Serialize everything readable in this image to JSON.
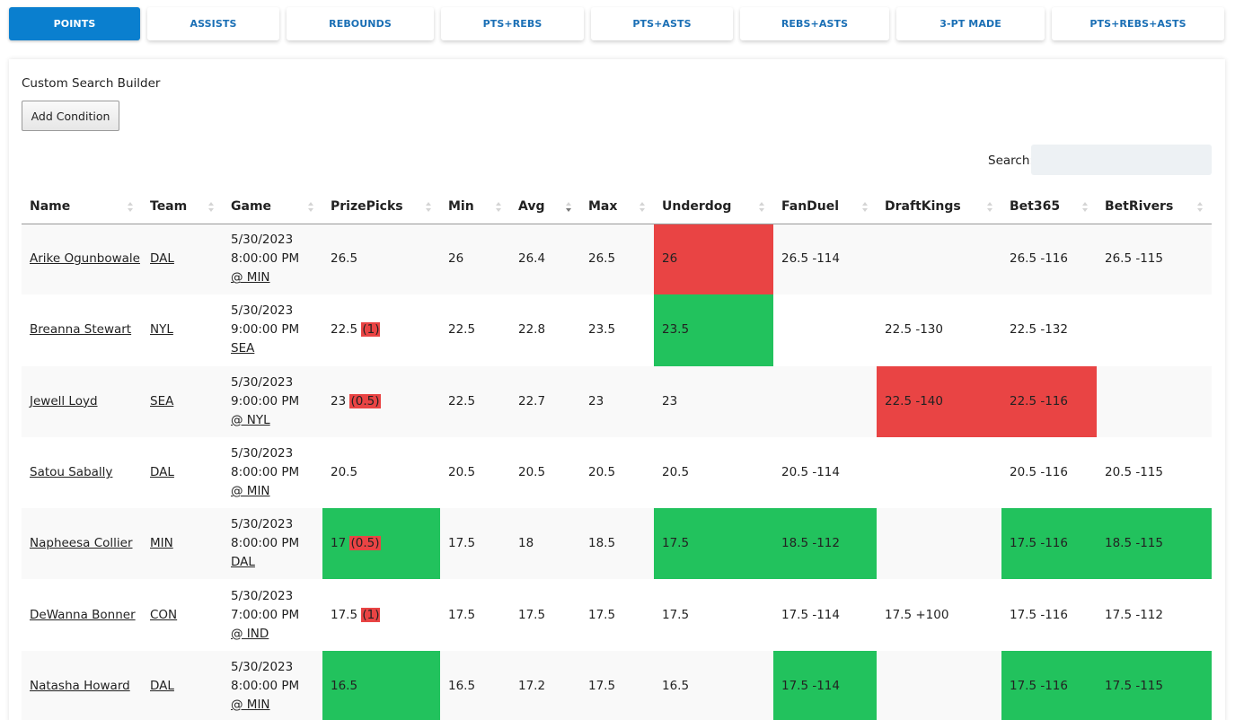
{
  "tabs": [
    "POINTS",
    "ASSISTS",
    "REBOUNDS",
    "PTS+REBS",
    "PTS+ASTS",
    "REBS+ASTS",
    "3-PT MADE",
    "PTS+REBS+ASTS"
  ],
  "builder": {
    "title": "Custom Search Builder",
    "add_button": "Add Condition"
  },
  "search": {
    "label": "Search:",
    "value": ""
  },
  "colors": {
    "accent": "#0a7fcf",
    "red": "#e94444",
    "green": "#22c25d"
  },
  "columns": [
    "Name",
    "Team",
    "Game",
    "PrizePicks",
    "Min",
    "Avg",
    "Max",
    "Underdog",
    "FanDuel",
    "DraftKings",
    "Bet365",
    "BetRivers"
  ],
  "sort": {
    "column": "Avg",
    "direction": "descending"
  },
  "rows": [
    {
      "name": "Arike Ogunbowale",
      "team": "DAL",
      "game": {
        "date": "5/30/2023",
        "time": "8:00:00 PM",
        "opponent": "@ MIN"
      },
      "prizepicks": "26.5",
      "prizepicks_diff": "",
      "min": "26",
      "avg": "26.4",
      "max": "26.5",
      "underdog": "26",
      "fanduel": "26.5 -114",
      "draftkings": "",
      "bet365": "26.5 -116",
      "betrivers": "26.5 -115",
      "highlight": {
        "prizepicks": "",
        "underdog": "red",
        "fanduel": "",
        "draftkings": "",
        "bet365": "",
        "betrivers": ""
      }
    },
    {
      "name": "Breanna Stewart",
      "team": "NYL",
      "game": {
        "date": "5/30/2023",
        "time": "9:00:00 PM",
        "opponent": "SEA"
      },
      "prizepicks": "22.5",
      "prizepicks_diff": "(1)",
      "min": "22.5",
      "avg": "22.8",
      "max": "23.5",
      "underdog": "23.5",
      "fanduel": "",
      "draftkings": "22.5 -130",
      "bet365": "22.5 -132",
      "betrivers": "",
      "highlight": {
        "prizepicks": "",
        "underdog": "green",
        "fanduel": "",
        "draftkings": "",
        "bet365": "",
        "betrivers": ""
      }
    },
    {
      "name": "Jewell Loyd",
      "team": "SEA",
      "game": {
        "date": "5/30/2023",
        "time": "9:00:00 PM",
        "opponent": "@ NYL"
      },
      "prizepicks": "23",
      "prizepicks_diff": "(0.5)",
      "min": "22.5",
      "avg": "22.7",
      "max": "23",
      "underdog": "23",
      "fanduel": "",
      "draftkings": "22.5 -140",
      "bet365": "22.5 -116",
      "betrivers": "",
      "highlight": {
        "prizepicks": "",
        "underdog": "",
        "fanduel": "",
        "draftkings": "red",
        "bet365": "red",
        "betrivers": ""
      }
    },
    {
      "name": "Satou Sabally",
      "team": "DAL",
      "game": {
        "date": "5/30/2023",
        "time": "8:00:00 PM",
        "opponent": "@ MIN"
      },
      "prizepicks": "20.5",
      "prizepicks_diff": "",
      "min": "20.5",
      "avg": "20.5",
      "max": "20.5",
      "underdog": "20.5",
      "fanduel": "20.5 -114",
      "draftkings": "",
      "bet365": "20.5 -116",
      "betrivers": "20.5 -115",
      "highlight": {
        "prizepicks": "",
        "underdog": "",
        "fanduel": "",
        "draftkings": "",
        "bet365": "",
        "betrivers": ""
      }
    },
    {
      "name": "Napheesa Collier",
      "team": "MIN",
      "game": {
        "date": "5/30/2023",
        "time": "8:00:00 PM",
        "opponent": "DAL"
      },
      "prizepicks": "17",
      "prizepicks_diff": "(0.5)",
      "min": "17.5",
      "avg": "18",
      "max": "18.5",
      "underdog": "17.5",
      "fanduel": "18.5 -112",
      "draftkings": "",
      "bet365": "17.5 -116",
      "betrivers": "18.5 -115",
      "highlight": {
        "prizepicks": "green",
        "underdog": "green",
        "fanduel": "green",
        "draftkings": "",
        "bet365": "green",
        "betrivers": "green"
      }
    },
    {
      "name": "DeWanna Bonner",
      "team": "CON",
      "game": {
        "date": "5/30/2023",
        "time": "7:00:00 PM",
        "opponent": "@ IND"
      },
      "prizepicks": "17.5",
      "prizepicks_diff": "(1)",
      "min": "17.5",
      "avg": "17.5",
      "max": "17.5",
      "underdog": "17.5",
      "fanduel": "17.5 -114",
      "draftkings": "17.5 +100",
      "bet365": "17.5 -116",
      "betrivers": "17.5 -112",
      "highlight": {
        "prizepicks": "",
        "underdog": "",
        "fanduel": "",
        "draftkings": "",
        "bet365": "",
        "betrivers": ""
      }
    },
    {
      "name": "Natasha Howard",
      "team": "DAL",
      "game": {
        "date": "5/30/2023",
        "time": "8:00:00 PM",
        "opponent": "@ MIN"
      },
      "prizepicks": "16.5",
      "prizepicks_diff": "",
      "min": "16.5",
      "avg": "17.2",
      "max": "17.5",
      "underdog": "16.5",
      "fanduel": "17.5 -114",
      "draftkings": "",
      "bet365": "17.5 -116",
      "betrivers": "17.5 -115",
      "highlight": {
        "prizepicks": "green",
        "underdog": "",
        "fanduel": "green",
        "draftkings": "",
        "bet365": "green",
        "betrivers": "green"
      }
    }
  ]
}
